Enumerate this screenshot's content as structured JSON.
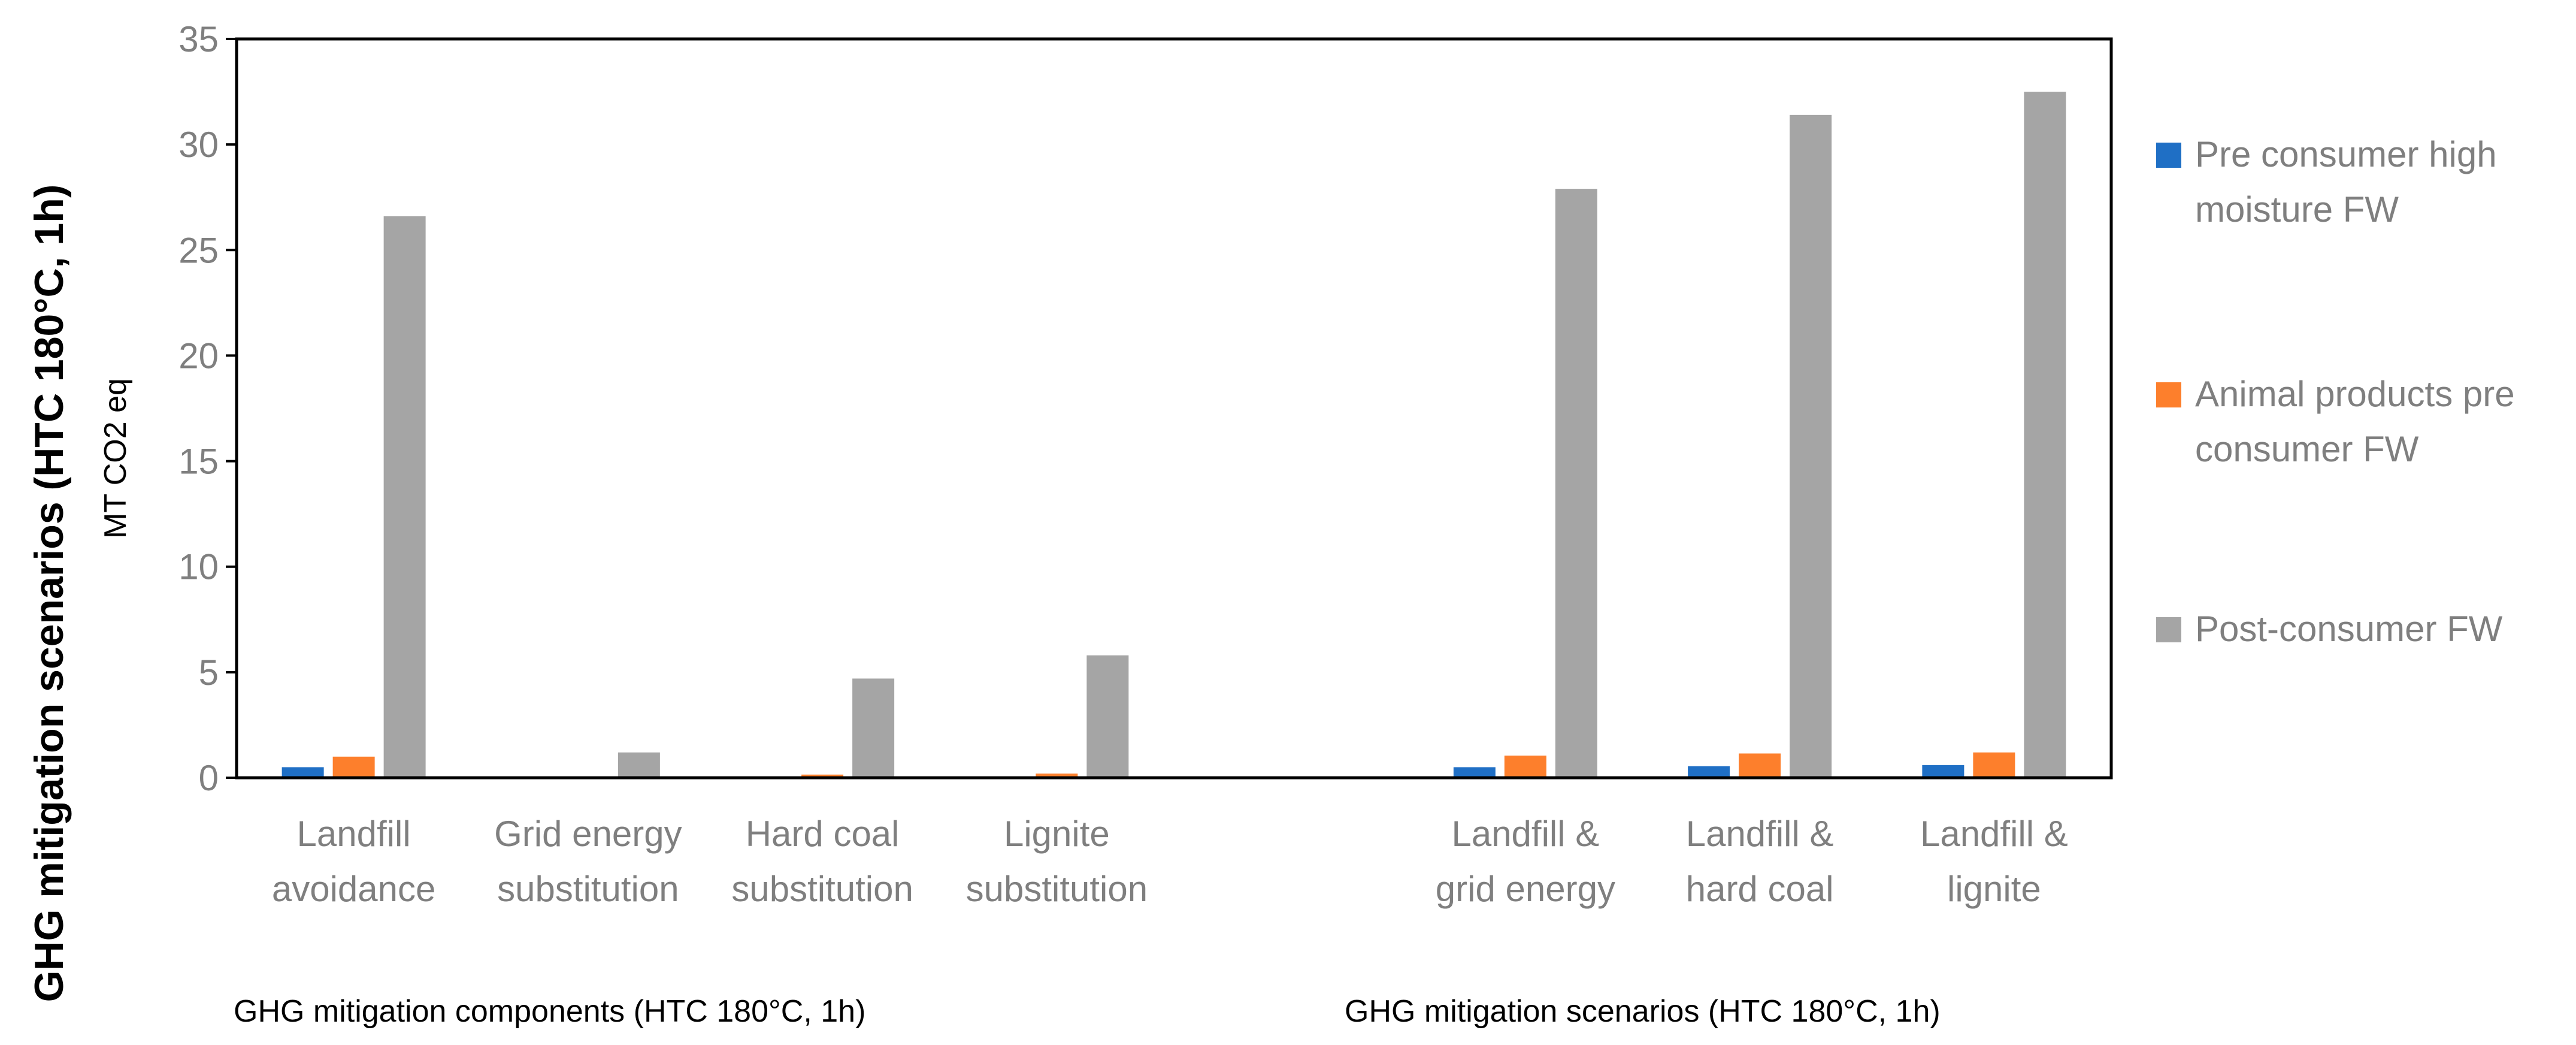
{
  "chart_data": {
    "type": "bar",
    "outer_ylabel": "GHG mitigation scenarios (HTC 180°C, 1h)",
    "ylabel": "MT CO2 eq",
    "ylim": [
      0,
      35
    ],
    "yticks": [
      "0",
      "5",
      "10",
      "15",
      "20",
      "25",
      "30",
      "35"
    ],
    "categories": [
      [
        "Landfill",
        "avoidance"
      ],
      [
        "Grid energy",
        "substitution"
      ],
      [
        "Hard coal",
        "substitution"
      ],
      [
        "Lignite",
        "substitution"
      ],
      [
        "",
        ""
      ],
      [
        "Landfill &",
        "grid energy"
      ],
      [
        "Landfill &",
        "hard coal"
      ],
      [
        "Landfill &",
        "lignite"
      ]
    ],
    "series": [
      {
        "name_lines": [
          "Pre consumer high",
          "moisture FW"
        ],
        "color": "#1f6fc5",
        "values": [
          0.5,
          0.0,
          0.0,
          0.05,
          null,
          0.5,
          0.55,
          0.6
        ]
      },
      {
        "name_lines": [
          "Animal products pre",
          "consumer FW"
        ],
        "color": "#fd7f2c",
        "values": [
          1.0,
          0.0,
          0.15,
          0.2,
          null,
          1.05,
          1.15,
          1.2
        ]
      },
      {
        "name_lines": [
          "Post-consumer FW"
        ],
        "color": "#a5a5a5",
        "values": [
          26.6,
          1.2,
          4.7,
          5.8,
          null,
          27.9,
          31.4,
          32.5
        ]
      }
    ],
    "group_labels": [
      "GHG mitigation components (HTC 180°C, 1h)",
      "GHG mitigation scenarios (HTC 180°C, 1h)"
    ],
    "legend_position": "right"
  }
}
